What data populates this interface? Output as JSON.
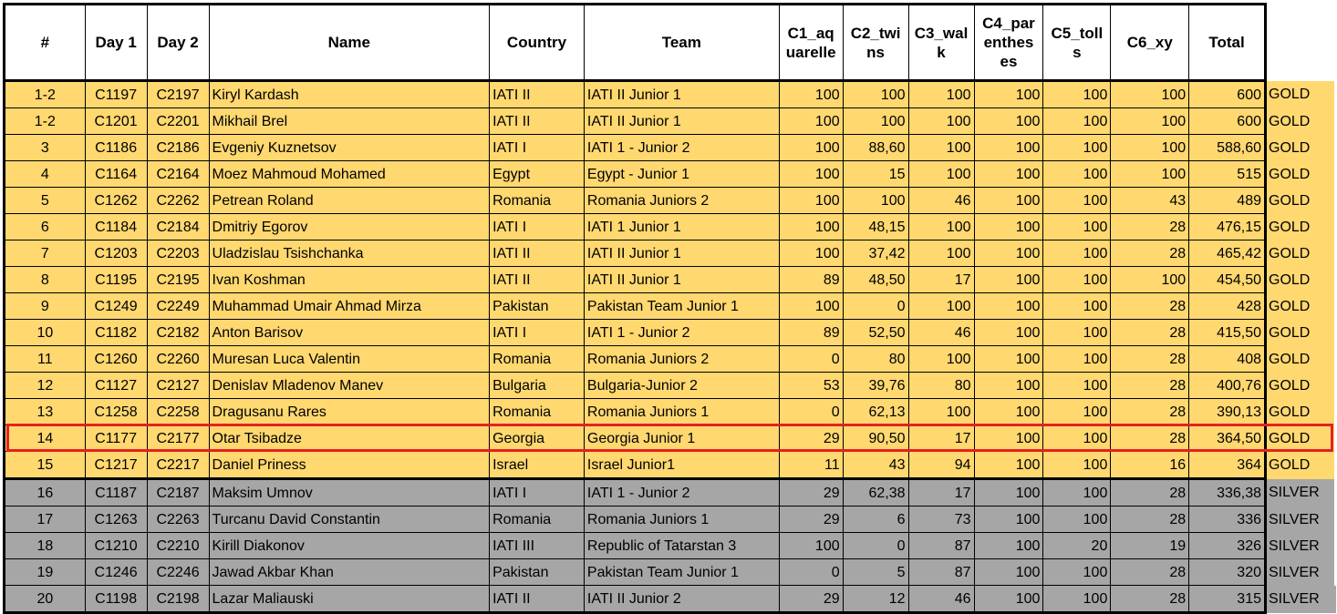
{
  "headers": {
    "num": "#",
    "day1": "Day 1",
    "day2": "Day 2",
    "name": "Name",
    "country": "Country",
    "team": "Team",
    "c1": [
      "C1_aq",
      "uarelle"
    ],
    "c2": [
      "C2_twi",
      "ns"
    ],
    "c3": [
      "C3_wal",
      "k"
    ],
    "c4": [
      "C4_par",
      "enthes",
      "es"
    ],
    "c5": [
      "C5_toll",
      "s"
    ],
    "c6": "C6_xy",
    "total": "Total"
  },
  "highlighted_row_index": 13,
  "rows": [
    {
      "rank": "1-2",
      "day1": "C1197",
      "day2": "C2197",
      "name": "Kiryl Kardash",
      "country": "IATI II",
      "team": "IATI II Junior 1",
      "c1": "100",
      "c2": "100",
      "c3": "100",
      "c4": "100",
      "c5": "100",
      "c6": "100",
      "total": "600",
      "medal": "GOLD"
    },
    {
      "rank": "1-2",
      "day1": "C1201",
      "day2": "C2201",
      "name": "Mikhail Brel",
      "country": "IATI II",
      "team": "IATI II Junior 1",
      "c1": "100",
      "c2": "100",
      "c3": "100",
      "c4": "100",
      "c5": "100",
      "c6": "100",
      "total": "600",
      "medal": "GOLD"
    },
    {
      "rank": "3",
      "day1": "C1186",
      "day2": "C2186",
      "name": "Evgeniy Kuznetsov",
      "country": "IATI I",
      "team": "IATI 1 - Junior 2",
      "c1": "100",
      "c2": "88,60",
      "c3": "100",
      "c4": "100",
      "c5": "100",
      "c6": "100",
      "total": "588,60",
      "medal": "GOLD"
    },
    {
      "rank": "4",
      "day1": "C1164",
      "day2": "C2164",
      "name": "Moez Mahmoud Mohamed",
      "country": "Egypt",
      "team": "Egypt - Junior 1",
      "c1": "100",
      "c2": "15",
      "c3": "100",
      "c4": "100",
      "c5": "100",
      "c6": "100",
      "total": "515",
      "medal": "GOLD"
    },
    {
      "rank": "5",
      "day1": "C1262",
      "day2": "C2262",
      "name": "Petrean Roland",
      "country": "Romania",
      "team": "Romania Juniors 2",
      "c1": "100",
      "c2": "100",
      "c3": "46",
      "c4": "100",
      "c5": "100",
      "c6": "43",
      "total": "489",
      "medal": "GOLD"
    },
    {
      "rank": "6",
      "day1": "C1184",
      "day2": "C2184",
      "name": "Dmitriy Egorov",
      "country": "IATI I",
      "team": "IATI 1 Junior 1",
      "c1": "100",
      "c2": "48,15",
      "c3": "100",
      "c4": "100",
      "c5": "100",
      "c6": "28",
      "total": "476,15",
      "medal": "GOLD"
    },
    {
      "rank": "7",
      "day1": "C1203",
      "day2": "C2203",
      "name": "Uladzislau Tsishchanka",
      "country": "IATI II",
      "team": "IATI II Junior 1",
      "c1": "100",
      "c2": "37,42",
      "c3": "100",
      "c4": "100",
      "c5": "100",
      "c6": "28",
      "total": "465,42",
      "medal": "GOLD"
    },
    {
      "rank": "8",
      "day1": "C1195",
      "day2": "C2195",
      "name": "Ivan Koshman",
      "country": "IATI II",
      "team": "IATI II Junior 1",
      "c1": "89",
      "c2": "48,50",
      "c3": "17",
      "c4": "100",
      "c5": "100",
      "c6": "100",
      "total": "454,50",
      "medal": "GOLD"
    },
    {
      "rank": "9",
      "day1": "C1249",
      "day2": "C2249",
      "name": "Muhammad Umair Ahmad Mirza",
      "country": "Pakistan",
      "team": "Pakistan Team Junior 1",
      "c1": "100",
      "c2": "0",
      "c3": "100",
      "c4": "100",
      "c5": "100",
      "c6": "28",
      "total": "428",
      "medal": "GOLD"
    },
    {
      "rank": "10",
      "day1": "C1182",
      "day2": "C2182",
      "name": "Anton Barisov",
      "country": "IATI I",
      "team": "IATI 1 - Junior 2",
      "c1": "89",
      "c2": "52,50",
      "c3": "46",
      "c4": "100",
      "c5": "100",
      "c6": "28",
      "total": "415,50",
      "medal": "GOLD"
    },
    {
      "rank": "11",
      "day1": "C1260",
      "day2": "C2260",
      "name": "Muresan Luca Valentin",
      "country": "Romania",
      "team": "Romania Juniors 2",
      "c1": "0",
      "c2": "80",
      "c3": "100",
      "c4": "100",
      "c5": "100",
      "c6": "28",
      "total": "408",
      "medal": "GOLD"
    },
    {
      "rank": "12",
      "day1": "C1127",
      "day2": "C2127",
      "name": "Denislav Mladenov Manev",
      "country": "Bulgaria",
      "team": "Bulgaria-Junior 2",
      "c1": "53",
      "c2": "39,76",
      "c3": "80",
      "c4": "100",
      "c5": "100",
      "c6": "28",
      "total": "400,76",
      "medal": "GOLD"
    },
    {
      "rank": "13",
      "day1": "C1258",
      "day2": "C2258",
      "name": "Dragusanu Rares",
      "country": "Romania",
      "team": "Romania Juniors 1",
      "c1": "0",
      "c2": "62,13",
      "c3": "100",
      "c4": "100",
      "c5": "100",
      "c6": "28",
      "total": "390,13",
      "medal": "GOLD"
    },
    {
      "rank": "14",
      "day1": "C1177",
      "day2": "C2177",
      "name": "Otar Tsibadze",
      "country": "Georgia",
      "team": "Georgia Junior 1",
      "c1": "29",
      "c2": "90,50",
      "c3": "17",
      "c4": "100",
      "c5": "100",
      "c6": "28",
      "total": "364,50",
      "medal": "GOLD"
    },
    {
      "rank": "15",
      "day1": "C1217",
      "day2": "C2217",
      "name": "Daniel Priness",
      "country": "Israel",
      "team": "Israel Junior1",
      "c1": "11",
      "c2": "43",
      "c3": "94",
      "c4": "100",
      "c5": "100",
      "c6": "16",
      "total": "364",
      "medal": "GOLD"
    },
    {
      "rank": "16",
      "day1": "C1187",
      "day2": "C2187",
      "name": "Maksim Umnov",
      "country": "IATI I",
      "team": "IATI 1 - Junior 2",
      "c1": "29",
      "c2": "62,38",
      "c3": "17",
      "c4": "100",
      "c5": "100",
      "c6": "28",
      "total": "336,38",
      "medal": "SILVER"
    },
    {
      "rank": "17",
      "day1": "C1263",
      "day2": "C2263",
      "name": "Turcanu David Constantin",
      "country": "Romania",
      "team": "Romania Juniors 1",
      "c1": "29",
      "c2": "6",
      "c3": "73",
      "c4": "100",
      "c5": "100",
      "c6": "28",
      "total": "336",
      "medal": "SILVER"
    },
    {
      "rank": "18",
      "day1": "C1210",
      "day2": "C2210",
      "name": "Kirill Diakonov",
      "country": "IATI III",
      "team": "Republic of Tatarstan 3",
      "c1": "100",
      "c2": "0",
      "c3": "87",
      "c4": "100",
      "c5": "20",
      "c6": "19",
      "total": "326",
      "medal": "SILVER"
    },
    {
      "rank": "19",
      "day1": "C1246",
      "day2": "C2246",
      "name": "Jawad Akbar Khan",
      "country": "Pakistan",
      "team": "Pakistan Team Junior 1",
      "c1": "0",
      "c2": "5",
      "c3": "87",
      "c4": "100",
      "c5": "100",
      "c6": "28",
      "total": "320",
      "medal": "SILVER"
    },
    {
      "rank": "20",
      "day1": "C1198",
      "day2": "C2198",
      "name": "Lazar Maliauski",
      "country": "IATI II",
      "team": "IATI II Junior 2",
      "c1": "29",
      "c2": "12",
      "c3": "46",
      "c4": "100",
      "c5": "100",
      "c6": "28",
      "total": "315",
      "medal": "SILVER"
    }
  ]
}
